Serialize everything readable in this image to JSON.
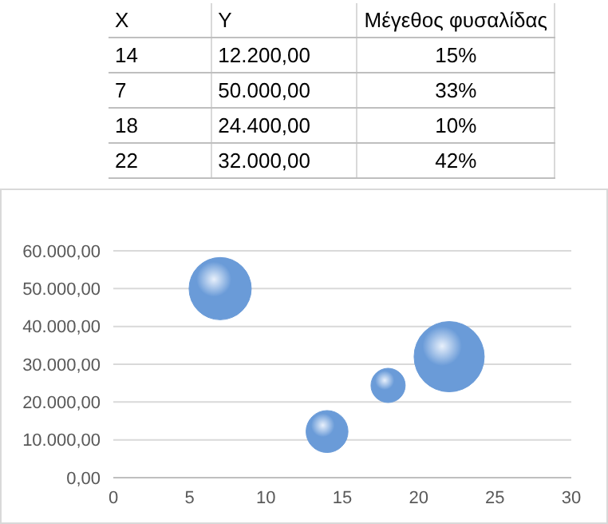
{
  "chart_data": [
    {
      "type": "other",
      "annotations": [
        "X",
        "Y",
        "Μέγεθος φυσαλίδας",
        "14",
        "12.200,00",
        "15%",
        "7",
        "50.000,00",
        "33%",
        "18",
        "24.400,00",
        "10%",
        "22",
        "32.000,00",
        "42%"
      ]
    },
    {
      "type": "bubble",
      "x": [
        14,
        7,
        18,
        22
      ],
      "values": [
        12200,
        50000,
        24400,
        32000
      ],
      "sizes": [
        0.357,
        0.786,
        0.238,
        1
      ],
      "color": "#6a9bd8",
      "xlim": [
        0,
        30
      ],
      "xticks": [
        0,
        5,
        10,
        15,
        20,
        25,
        30
      ],
      "ylim": [
        0,
        60000
      ],
      "yticks": [
        {
          "value": 0,
          "label": "0,00"
        },
        {
          "value": 10000,
          "label": "10.000,00"
        },
        {
          "value": 20000,
          "label": "20.000,00"
        },
        {
          "value": 30000,
          "label": "30.000,00"
        },
        {
          "value": 40000,
          "label": "40.000,00"
        },
        {
          "value": 50000,
          "label": "50.000,00"
        },
        {
          "value": 60000,
          "label": "60.000,00"
        }
      ],
      "grid": "y",
      "legend": false
    }
  ]
}
